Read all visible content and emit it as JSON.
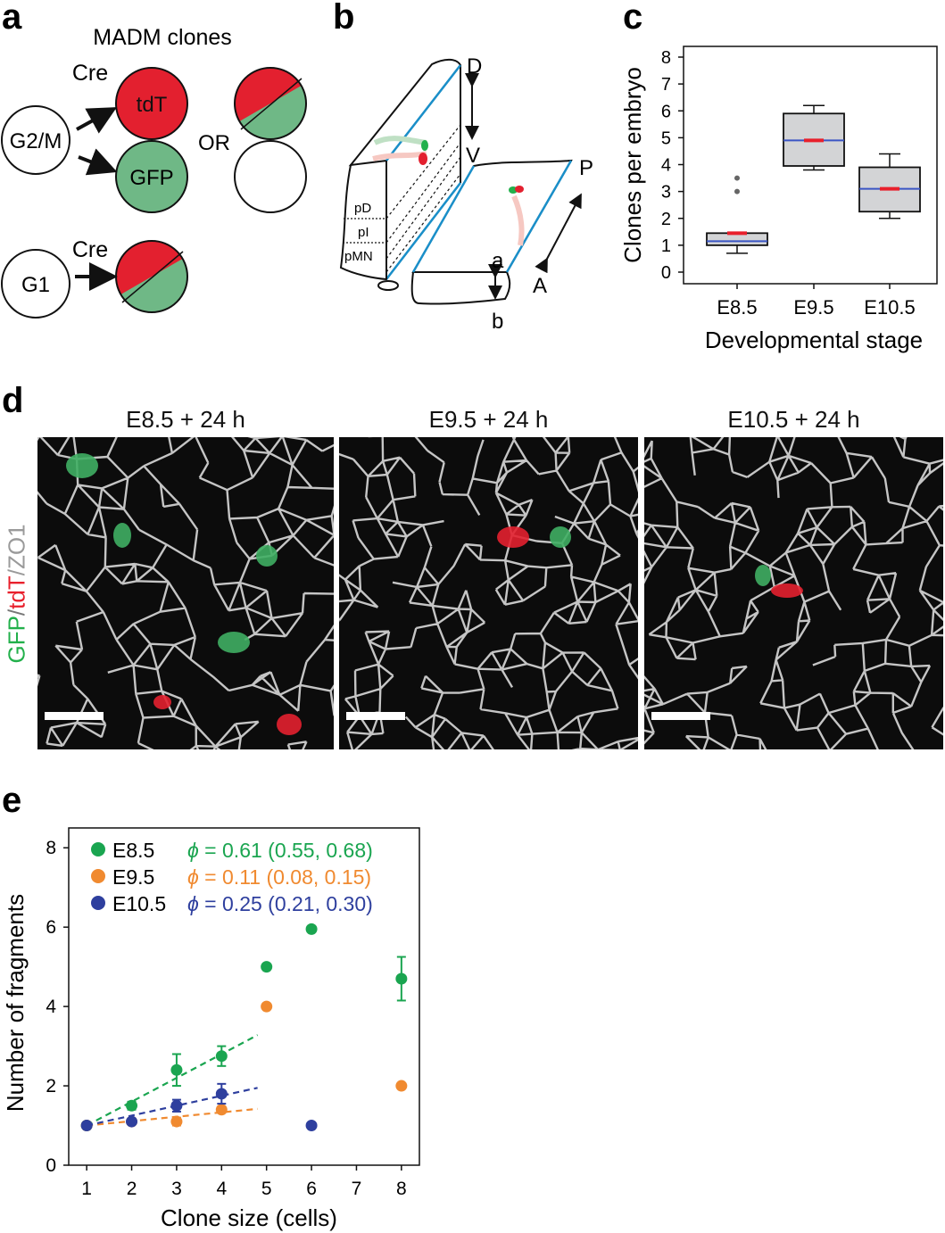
{
  "panels": {
    "a": {
      "letter": "a",
      "title": "MADM clones",
      "cre_label": "Cre",
      "g2m_label": "G2/M",
      "g1_label": "G1",
      "tdt_label": "tdT",
      "gfp_label": "GFP",
      "or_label": "OR",
      "colors": {
        "red": "#e3202f",
        "green": "#6fb886"
      }
    },
    "b": {
      "letter": "b",
      "labels": {
        "D": "D",
        "V": "V",
        "P": "P",
        "A": "A",
        "a": "a",
        "b": "b",
        "pD": "pD",
        "pI": "pI",
        "pMN": "pMN"
      }
    },
    "c": {
      "letter": "c",
      "chart_data": {
        "type": "box",
        "categories": [
          "E8.5",
          "E9.5",
          "E10.5"
        ],
        "ylabel": "Clones per embryo",
        "xlabel": "Developmental stage",
        "ylim": [
          0,
          8
        ],
        "yticks": [
          0,
          1,
          2,
          3,
          4,
          5,
          6,
          7,
          8
        ],
        "boxes": [
          {
            "category": "E8.5",
            "whisker_low": 0.7,
            "q1": 1.0,
            "median": 1.15,
            "mean": 1.45,
            "q3": 1.45,
            "whisker_high": 1.45,
            "outliers": [
              3.0,
              3.5
            ]
          },
          {
            "category": "E9.5",
            "whisker_low": 3.8,
            "q1": 3.95,
            "median": 4.9,
            "mean": 4.9,
            "q3": 5.9,
            "whisker_high": 6.2,
            "outliers": []
          },
          {
            "category": "E10.5",
            "whisker_low": 2.0,
            "q1": 2.25,
            "median": 3.1,
            "mean": 3.1,
            "q3": 3.9,
            "whisker_high": 4.4,
            "outliers": []
          }
        ],
        "colors": {
          "box": "#d3d4d6",
          "median": "#3a55c4",
          "mean": "#e8202c"
        }
      }
    },
    "d": {
      "letter": "d",
      "ylabel_parts": [
        {
          "text": "GFP",
          "color": "#22b04b"
        },
        {
          "text": "/",
          "color": "#777777"
        },
        {
          "text": "tdT",
          "color": "#e8202c"
        },
        {
          "text": "/ZO1",
          "color": "#9a9a9a"
        }
      ],
      "images": [
        {
          "title": "E8.5 + 24 h"
        },
        {
          "title": "E9.5 + 24 h"
        },
        {
          "title": "E10.5 + 24 h"
        }
      ]
    },
    "e": {
      "letter": "e",
      "chart_data": {
        "type": "scatter",
        "xlabel": "Clone size (cells)",
        "ylabel": "Number of fragments",
        "xlim": [
          0.6,
          8.4
        ],
        "ylim": [
          0,
          8.5
        ],
        "xticks": [
          1,
          2,
          3,
          4,
          5,
          6,
          7,
          8
        ],
        "yticks": [
          0,
          2,
          4,
          6,
          8
        ],
        "series": [
          {
            "name": "E8.5",
            "color": "#1aa550",
            "phi_text": "= 0.61 (0.55, 0.68)",
            "x": [
              1,
              2,
              3,
              4,
              5,
              6,
              8
            ],
            "y": [
              1.0,
              1.5,
              2.4,
              2.75,
              5.0,
              5.95,
              4.7
            ],
            "err": [
              0,
              0.1,
              0.4,
              0.25,
              0,
              0,
              0.55
            ],
            "fit": {
              "x0": 1,
              "y0": 1.0,
              "x1": 4.8,
              "y1": 3.28
            }
          },
          {
            "name": "E9.5",
            "color": "#f08a30",
            "phi_text": "= 0.11 (0.08, 0.15)",
            "x": [
              1,
              2,
              3,
              4,
              5,
              8
            ],
            "y": [
              1.0,
              1.1,
              1.1,
              1.4,
              4.0,
              2.0
            ],
            "err": [
              0,
              0,
              0.1,
              0.05,
              0,
              0
            ],
            "fit": {
              "x0": 1,
              "y0": 1.0,
              "x1": 4.8,
              "y1": 1.42
            }
          },
          {
            "name": "E10.5",
            "color": "#2e3f9e",
            "phi_text": "= 0.25 (0.21, 0.30)",
            "x": [
              1,
              2,
              3,
              4,
              6
            ],
            "y": [
              1.0,
              1.1,
              1.5,
              1.8,
              1.0
            ],
            "err": [
              0,
              0,
              0.15,
              0.25,
              0
            ],
            "fit": {
              "x0": 1,
              "y0": 1.0,
              "x1": 4.8,
              "y1": 1.95
            }
          }
        ],
        "phi_symbol": "ϕ"
      }
    }
  }
}
